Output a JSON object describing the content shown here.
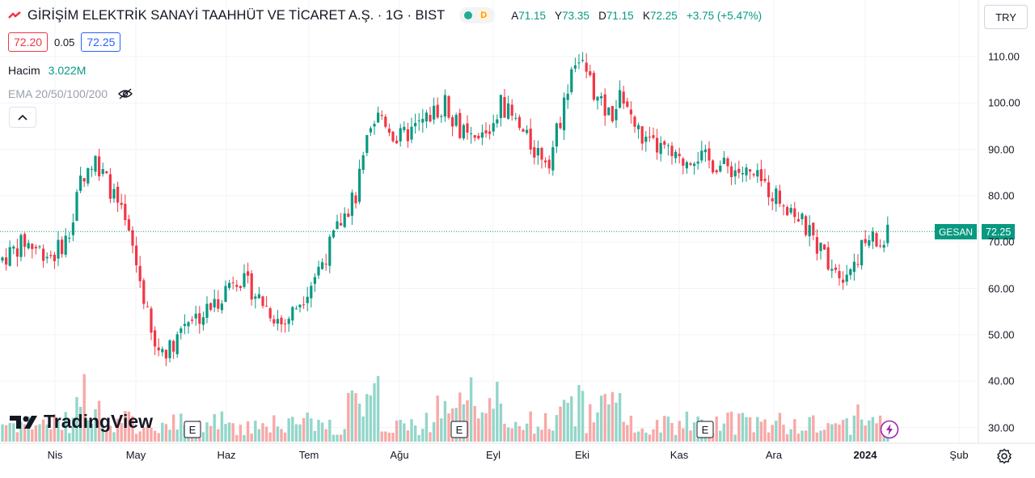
{
  "header": {
    "title": "GİRİŞİM ELEKTRİK SANAYİ TAAHHÜT VE TİCARET A.Ş. · 1G · BIST",
    "market_status_letter": "D",
    "ohlc": [
      {
        "key": "A",
        "value": "71.15"
      },
      {
        "key": "Y",
        "value": "73.35"
      },
      {
        "key": "D",
        "value": "71.15"
      },
      {
        "key": "K",
        "value": "72.25"
      }
    ],
    "change": "+3.75 (+5.47%)",
    "bid": "72.20",
    "spread": "0.05",
    "ask": "72.25",
    "currency": "TRY"
  },
  "indicators": {
    "volume_label": "Hacim",
    "volume_value": "3.022M",
    "ema_label": "EMA 20/50/100/200"
  },
  "branding": {
    "logo_text": "TradingView"
  },
  "last_price_tag": {
    "symbol": "GESAN",
    "price": "72.25"
  },
  "earnings_marker": "E",
  "colors": {
    "up": "#089981",
    "down": "#f23645",
    "up_volume": "#93d6c9",
    "down_volume": "#f7a9a7"
  },
  "chart_data": {
    "type": "candlestick",
    "y_axis_ticks": [
      "110.00",
      "100.00",
      "90.00",
      "80.00",
      "70.00",
      "60.00",
      "50.00",
      "40.00",
      "30.00"
    ],
    "x_axis_ticks": [
      "Nis",
      "May",
      "Haz",
      "Tem",
      "Ağu",
      "Eyl",
      "Eki",
      "Kas",
      "Ara",
      "2024",
      "Şub"
    ],
    "ylim": [
      28,
      118
    ],
    "last_price": 72.25,
    "earnings_events": [
      "2023-05-12",
      "2023-08-16",
      "2023-11-08"
    ],
    "grid": true,
    "candle_summary": {
      "Nis": {
        "low": 63,
        "high": 73
      },
      "May": {
        "low": 45,
        "high": 90
      },
      "Haz": {
        "low": 52,
        "high": 65
      },
      "Tem": {
        "low": 50,
        "high": 80
      },
      "Ağu": {
        "low": 85,
        "high": 116
      },
      "Eyl": {
        "low": 83,
        "high": 107
      },
      "Eki": {
        "low": 90,
        "high": 117
      },
      "Kas": {
        "low": 82,
        "high": 94
      },
      "Ara": {
        "low": 68,
        "high": 87
      },
      "Oca": {
        "low": 59,
        "high": 74
      }
    }
  }
}
